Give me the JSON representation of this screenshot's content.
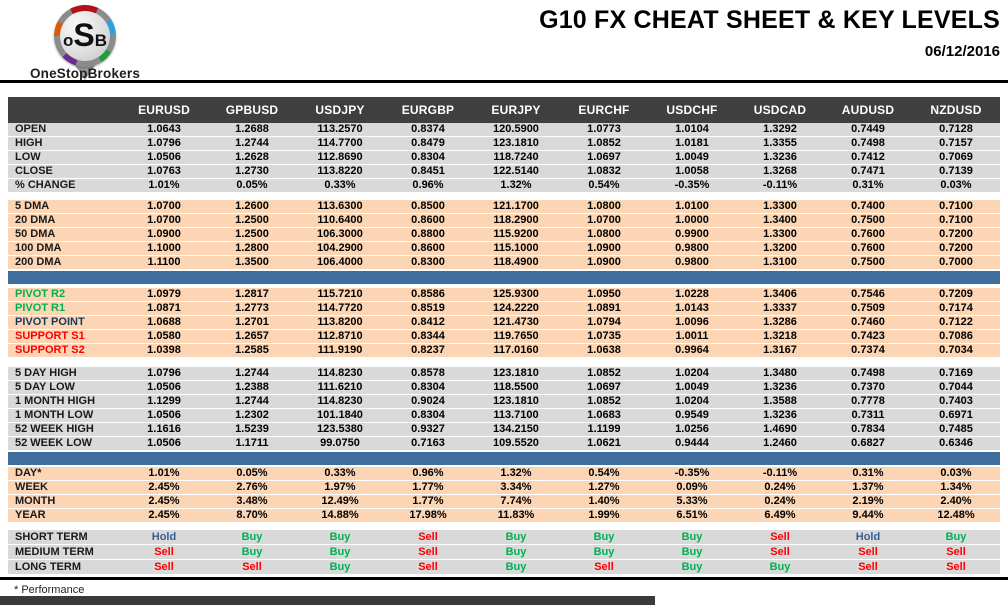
{
  "logo": {
    "letters": [
      "o",
      "S",
      "B"
    ],
    "brand": "OneStopBrokers"
  },
  "header": {
    "title": "G10 FX CHEAT SHEET & KEY LEVELS",
    "date": "06/12/2016"
  },
  "footer": {
    "note": "* Performance"
  },
  "colors": {
    "header_bg": "#3f3f3f",
    "gray_row": "#d9d9d9",
    "peach_row": "#fcd5b4",
    "divider_blue": "#3e6d9e",
    "green": "#00b050",
    "red": "#ff0000",
    "navy": "#17375d",
    "hold_blue": "#376092"
  },
  "table": {
    "columns": [
      "EURUSD",
      "GPBUSD",
      "USDJPY",
      "EURGBP",
      "EURJPY",
      "EURCHF",
      "USDCHF",
      "USDCAD",
      "AUDUSD",
      "NZDUSD"
    ],
    "sections": [
      {
        "id": "ohlc",
        "theme": "gray",
        "gap_before": 0,
        "divider_after": false,
        "rows": [
          {
            "label": "OPEN",
            "values": [
              "1.0643",
              "1.2688",
              "113.2570",
              "0.8374",
              "120.5900",
              "1.0773",
              "1.0104",
              "1.3292",
              "0.7449",
              "0.7128"
            ]
          },
          {
            "label": "HIGH",
            "values": [
              "1.0796",
              "1.2744",
              "114.7700",
              "0.8479",
              "123.1810",
              "1.0852",
              "1.0181",
              "1.3355",
              "0.7498",
              "0.7157"
            ]
          },
          {
            "label": "LOW",
            "values": [
              "1.0506",
              "1.2628",
              "112.8690",
              "0.8304",
              "118.7240",
              "1.0697",
              "1.0049",
              "1.3236",
              "0.7412",
              "0.7069"
            ]
          },
          {
            "label": "CLOSE",
            "values": [
              "1.0763",
              "1.2730",
              "113.8220",
              "0.8451",
              "122.5140",
              "1.0832",
              "1.0058",
              "1.3268",
              "0.7471",
              "0.7139"
            ]
          },
          {
            "label": "% CHANGE",
            "values": [
              "1.01%",
              "0.05%",
              "0.33%",
              "0.96%",
              "1.32%",
              "0.54%",
              "-0.35%",
              "-0.11%",
              "0.31%",
              "0.03%"
            ]
          }
        ]
      },
      {
        "id": "dma",
        "theme": "peach",
        "gap_before": 7,
        "divider_after": true,
        "rows": [
          {
            "label": "5 DMA",
            "values": [
              "1.0700",
              "1.2600",
              "113.6300",
              "0.8500",
              "121.1700",
              "1.0800",
              "1.0100",
              "1.3300",
              "0.7400",
              "0.7100"
            ]
          },
          {
            "label": "20 DMA",
            "values": [
              "1.0700",
              "1.2500",
              "110.6400",
              "0.8600",
              "118.2900",
              "1.0700",
              "1.0000",
              "1.3400",
              "0.7500",
              "0.7100"
            ]
          },
          {
            "label": "50 DMA",
            "values": [
              "1.0900",
              "1.2500",
              "106.3000",
              "0.8800",
              "115.9200",
              "1.0800",
              "0.9900",
              "1.3300",
              "0.7600",
              "0.7200"
            ]
          },
          {
            "label": "100 DMA",
            "values": [
              "1.1000",
              "1.2800",
              "104.2900",
              "0.8600",
              "115.1000",
              "1.0900",
              "0.9800",
              "1.3200",
              "0.7600",
              "0.7200"
            ]
          },
          {
            "label": "200 DMA",
            "values": [
              "1.1100",
              "1.3500",
              "106.4000",
              "0.8300",
              "118.4900",
              "1.0900",
              "0.9800",
              "1.3100",
              "0.7500",
              "0.7000"
            ]
          }
        ]
      },
      {
        "id": "pivots",
        "theme": "peach",
        "gap_before": 4,
        "divider_after": false,
        "rows": [
          {
            "label": "PIVOT R2",
            "label_color": "green",
            "values": [
              "1.0979",
              "1.2817",
              "115.7210",
              "0.8586",
              "125.9300",
              "1.0950",
              "1.0228",
              "1.3406",
              "0.7546",
              "0.7209"
            ]
          },
          {
            "label": "PIVOT R1",
            "label_color": "green",
            "values": [
              "1.0871",
              "1.2773",
              "114.7720",
              "0.8519",
              "124.2220",
              "1.0891",
              "1.0143",
              "1.3337",
              "0.7509",
              "0.7174"
            ]
          },
          {
            "label": "PIVOT POINT",
            "label_color": "navy",
            "values": [
              "1.0688",
              "1.2701",
              "113.8200",
              "0.8412",
              "121.4730",
              "1.0794",
              "1.0096",
              "1.3286",
              "0.7460",
              "0.7122"
            ]
          },
          {
            "label": "SUPPORT S1",
            "label_color": "red",
            "values": [
              "1.0580",
              "1.2657",
              "112.8710",
              "0.8344",
              "119.7650",
              "1.0735",
              "1.0011",
              "1.3218",
              "0.7423",
              "0.7086"
            ]
          },
          {
            "label": "SUPPORT S2",
            "label_color": "red",
            "values": [
              "1.0398",
              "1.2585",
              "111.9190",
              "0.8237",
              "117.0160",
              "1.0638",
              "0.9964",
              "1.3167",
              "0.7374",
              "0.7034"
            ]
          }
        ]
      },
      {
        "id": "ranges",
        "theme": "gray",
        "gap_before": 9,
        "divider_after": true,
        "rows": [
          {
            "label": "5 DAY HIGH",
            "values": [
              "1.0796",
              "1.2744",
              "114.8230",
              "0.8578",
              "123.1810",
              "1.0852",
              "1.0204",
              "1.3480",
              "0.7498",
              "0.7169"
            ]
          },
          {
            "label": "5 DAY LOW",
            "values": [
              "1.0506",
              "1.2388",
              "111.6210",
              "0.8304",
              "118.5500",
              "1.0697",
              "1.0049",
              "1.3236",
              "0.7370",
              "0.7044"
            ]
          },
          {
            "label": "1 MONTH HIGH",
            "values": [
              "1.1299",
              "1.2744",
              "114.8230",
              "0.9024",
              "123.1810",
              "1.0852",
              "1.0204",
              "1.3588",
              "0.7778",
              "0.7403"
            ]
          },
          {
            "label": "1 MONTH LOW",
            "values": [
              "1.0506",
              "1.2302",
              "101.1840",
              "0.8304",
              "113.7100",
              "1.0683",
              "0.9549",
              "1.3236",
              "0.7311",
              "0.6971"
            ]
          },
          {
            "label": "52 WEEK HIGH",
            "values": [
              "1.1616",
              "1.5239",
              "123.5380",
              "0.9327",
              "134.2150",
              "1.1199",
              "1.0256",
              "1.4690",
              "0.7834",
              "0.7485"
            ]
          },
          {
            "label": "52 WEEK LOW",
            "values": [
              "1.0506",
              "1.1711",
              "99.0750",
              "0.7163",
              "109.5520",
              "1.0621",
              "0.9444",
              "1.2460",
              "0.6827",
              "0.6346"
            ]
          }
        ]
      },
      {
        "id": "performance",
        "theme": "peach",
        "gap_before": 2,
        "divider_after": false,
        "rows": [
          {
            "label": "DAY*",
            "values": [
              "1.01%",
              "0.05%",
              "0.33%",
              "0.96%",
              "1.32%",
              "0.54%",
              "-0.35%",
              "-0.11%",
              "0.31%",
              "0.03%"
            ]
          },
          {
            "label": "WEEK",
            "values": [
              "2.45%",
              "2.76%",
              "1.97%",
              "1.77%",
              "3.34%",
              "1.27%",
              "0.09%",
              "0.24%",
              "1.37%",
              "1.34%"
            ]
          },
          {
            "label": "MONTH",
            "values": [
              "2.45%",
              "3.48%",
              "12.49%",
              "1.77%",
              "7.74%",
              "1.40%",
              "5.33%",
              "0.24%",
              "2.19%",
              "2.40%"
            ]
          },
          {
            "label": "YEAR",
            "values": [
              "2.45%",
              "8.70%",
              "14.88%",
              "17.98%",
              "11.83%",
              "1.99%",
              "6.51%",
              "6.49%",
              "9.44%",
              "12.48%"
            ]
          }
        ]
      },
      {
        "id": "signals",
        "theme": "gray",
        "gap_before": 7,
        "divider_after": false,
        "rows": [
          {
            "label": "SHORT TERM",
            "values": [
              "Hold",
              "Buy",
              "Buy",
              "Sell",
              "Buy",
              "Buy",
              "Buy",
              "Sell",
              "Hold",
              "Buy"
            ]
          },
          {
            "label": "MEDIUM TERM",
            "values": [
              "Sell",
              "Buy",
              "Buy",
              "Sell",
              "Buy",
              "Buy",
              "Buy",
              "Sell",
              "Sell",
              "Sell"
            ]
          },
          {
            "label": "LONG TERM",
            "values": [
              "Sell",
              "Sell",
              "Buy",
              "Sell",
              "Buy",
              "Sell",
              "Buy",
              "Buy",
              "Sell",
              "Sell"
            ]
          }
        ]
      }
    ]
  }
}
